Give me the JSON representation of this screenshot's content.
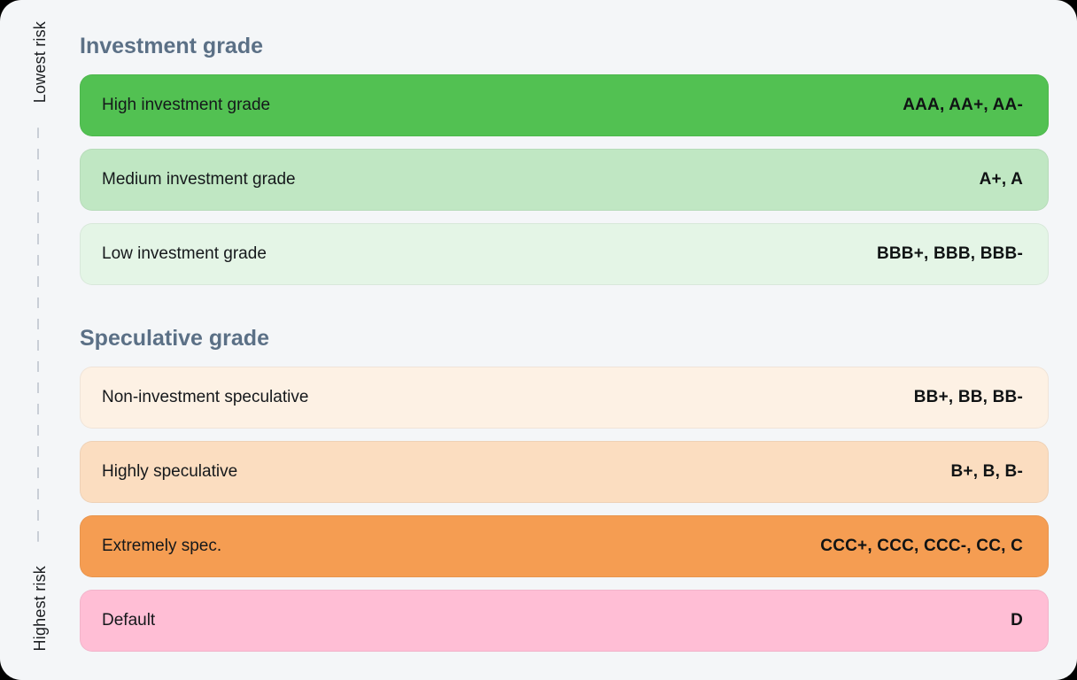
{
  "colors": {
    "page_background": "#000000",
    "canvas_background": "#f4f6f8",
    "section_title": "#5b7086",
    "row_text": "#15181b",
    "dashed_axis": "#c9ced6"
  },
  "risk_axis": {
    "top_label": "Lowest risk",
    "bottom_label": "Highest risk"
  },
  "sections": [
    {
      "title": "Investment grade",
      "rows": [
        {
          "label": "High investment grade",
          "ratings": "AAA, AA+, AA-",
          "bg": "#52c152"
        },
        {
          "label": "Medium investment grade",
          "ratings": "A+, A",
          "bg": "#c0e7c3"
        },
        {
          "label": "Low investment grade",
          "ratings": "BBB+, BBB, BBB-",
          "bg": "#e4f5e6"
        }
      ]
    },
    {
      "title": "Speculative grade",
      "rows": [
        {
          "label": "Non-investment speculative",
          "ratings": "BB+, BB, BB-",
          "bg": "#fdf1e4"
        },
        {
          "label": "Highly speculative",
          "ratings": "B+, B, B-",
          "bg": "#fbddc0"
        },
        {
          "label": "Extremely spec.",
          "ratings": "CCC+, CCC, CCC-, CC, C",
          "bg": "#f59d52"
        },
        {
          "label": "Default",
          "ratings": "D",
          "bg": "#ffbed5"
        }
      ]
    }
  ]
}
